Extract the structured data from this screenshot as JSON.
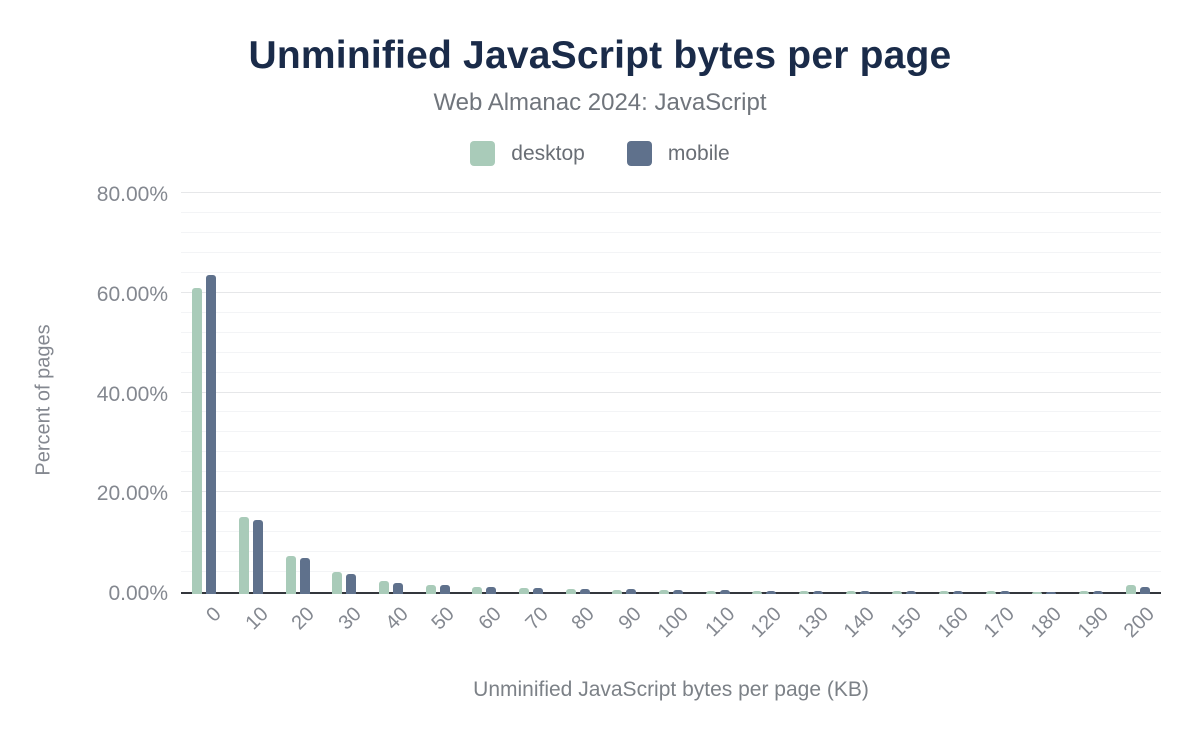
{
  "chart_data": {
    "type": "bar",
    "title": "Unminified JavaScript bytes per page",
    "subtitle": "Web Almanac 2024: JavaScript",
    "xlabel": "Unminified JavaScript bytes per page (KB)",
    "ylabel": "Percent of pages",
    "categories": [
      "0",
      "10",
      "20",
      "30",
      "40",
      "50",
      "60",
      "70",
      "80",
      "90",
      "100",
      "110",
      "120",
      "130",
      "140",
      "150",
      "160",
      "170",
      "180",
      "190",
      "200"
    ],
    "series": [
      {
        "name": "desktop",
        "color": "#a9cbb9",
        "values": [
          61.0,
          15.0,
          7.3,
          4.1,
          2.3,
          1.5,
          1.1,
          0.9,
          0.6,
          0.45,
          0.45,
          0.3,
          0.25,
          0.2,
          0.2,
          0.2,
          0.15,
          0.15,
          0.1,
          0.15,
          1.5
        ]
      },
      {
        "name": "mobile",
        "color": "#5f718c",
        "values": [
          63.5,
          14.5,
          6.8,
          3.7,
          1.9,
          1.4,
          1.0,
          0.9,
          0.7,
          0.55,
          0.5,
          0.35,
          0.3,
          0.25,
          0.2,
          0.2,
          0.2,
          0.15,
          0.1,
          0.2,
          1.0
        ]
      }
    ],
    "ylim": [
      0,
      80
    ],
    "y_ticks": [
      {
        "value": 0,
        "label": "0.00%"
      },
      {
        "value": 20,
        "label": "20.00%"
      },
      {
        "value": 40,
        "label": "40.00%"
      },
      {
        "value": 60,
        "label": "60.00%"
      },
      {
        "value": 80,
        "label": "80.00%"
      }
    ],
    "y_minor_step": 4,
    "grid": true,
    "legend_position": "top"
  },
  "colors": {
    "title": "#1a2b49",
    "subtitle": "#70757c",
    "axis_label": "#848890",
    "legend_text": "#696e75",
    "axis_line": "#33363c",
    "grid_major": "#e6e7e9",
    "grid_minor": "#f3f4f6",
    "desktop_bar": "#a9cbb9",
    "mobile_bar": "#5f718c"
  }
}
